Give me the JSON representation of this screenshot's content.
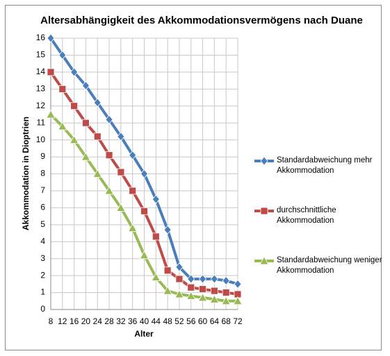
{
  "chart_data": {
    "type": "line",
    "title": "Altersabhängigkeit des Akkommodationsvermögens nach Duane",
    "x_label": "Alter",
    "y_label": "Akkommodation in Dioptrien",
    "x": [
      8,
      12,
      16,
      20,
      24,
      28,
      32,
      36,
      40,
      44,
      48,
      52,
      56,
      60,
      64,
      68,
      72
    ],
    "xlim": [
      8,
      72
    ],
    "xticks": [
      8,
      12,
      16,
      20,
      24,
      28,
      32,
      36,
      40,
      44,
      48,
      52,
      56,
      60,
      64,
      68,
      72
    ],
    "ylim": [
      0,
      16
    ],
    "yticks": [
      0,
      1,
      2,
      3,
      4,
      5,
      6,
      7,
      8,
      9,
      10,
      11,
      12,
      13,
      14,
      15,
      16
    ],
    "grid": true,
    "legend": "right",
    "series": [
      {
        "name": "Standardabweichung mehr Akkommodation",
        "color": "#4a7ebb",
        "marker": "diamond",
        "values": [
          16,
          15,
          14,
          13.2,
          12.2,
          11.2,
          10.2,
          9.1,
          8,
          6.5,
          4.7,
          2.5,
          1.8,
          1.8,
          1.8,
          1.7,
          1.5
        ]
      },
      {
        "name": "durchschnittliche Akkommodation",
        "color": "#be4b48",
        "marker": "square",
        "values": [
          14,
          13,
          12,
          11,
          10.2,
          9.1,
          8.1,
          7,
          5.8,
          4.3,
          2.3,
          1.8,
          1.3,
          1.2,
          1.1,
          1.0,
          0.9
        ]
      },
      {
        "name": "Standardabweichung weniger Akkommodation",
        "color": "#98b954",
        "marker": "triangle",
        "values": [
          11.5,
          10.8,
          10,
          9,
          8,
          7,
          6,
          4.8,
          3.2,
          1.9,
          1.1,
          0.9,
          0.8,
          0.7,
          0.6,
          0.5,
          0.5
        ]
      }
    ]
  }
}
